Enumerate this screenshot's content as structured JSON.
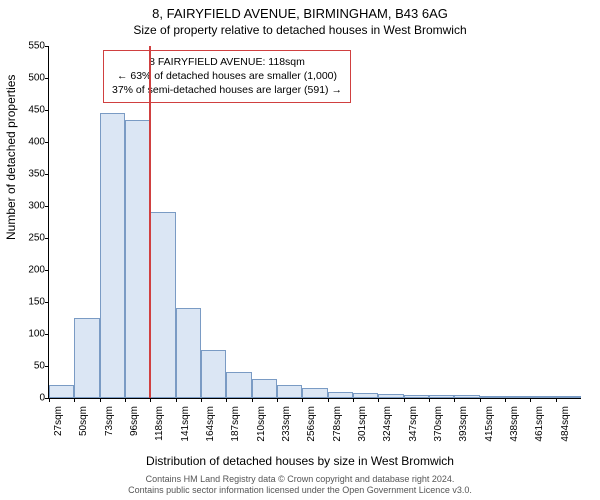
{
  "chart": {
    "type": "histogram",
    "title": "8, FAIRYFIELD AVENUE, BIRMINGHAM, B43 6AG",
    "subtitle": "Size of property relative to detached houses in West Bromwich",
    "ylabel": "Number of detached properties",
    "xlabel": "Distribution of detached houses by size in West Bromwich",
    "background_color": "#ffffff",
    "bar_fill": "#dbe6f4",
    "bar_stroke": "#7a9bc4",
    "marker_color": "#d04040",
    "title_fontsize": 13,
    "subtitle_fontsize": 12,
    "label_fontsize": 12,
    "tick_fontsize": 10,
    "ylim": [
      0,
      550
    ],
    "ytick_step": 50,
    "yticks": [
      0,
      50,
      100,
      150,
      200,
      250,
      300,
      350,
      400,
      450,
      500,
      550
    ],
    "xtick_labels": [
      "27sqm",
      "50sqm",
      "73sqm",
      "96sqm",
      "118sqm",
      "141sqm",
      "164sqm",
      "187sqm",
      "210sqm",
      "233sqm",
      "256sqm",
      "278sqm",
      "301sqm",
      "324sqm",
      "347sqm",
      "370sqm",
      "393sqm",
      "415sqm",
      "438sqm",
      "461sqm",
      "484sqm"
    ],
    "values": [
      20,
      125,
      445,
      435,
      290,
      140,
      75,
      40,
      30,
      20,
      15,
      10,
      8,
      6,
      5,
      4,
      4,
      3,
      3,
      2,
      2
    ],
    "marker_index": 4,
    "info_box": {
      "line1": "8 FAIRYFIELD AVENUE: 118sqm",
      "line2": "← 63% of detached houses are smaller (1,000)",
      "line3": "37% of semi-detached houses are larger (591) →",
      "border_color": "#d04040",
      "fontsize": 10.5
    }
  },
  "attribution": {
    "line1": "Contains HM Land Registry data © Crown copyright and database right 2024.",
    "line2": "Contains public sector information licensed under the Open Government Licence v3.0."
  }
}
